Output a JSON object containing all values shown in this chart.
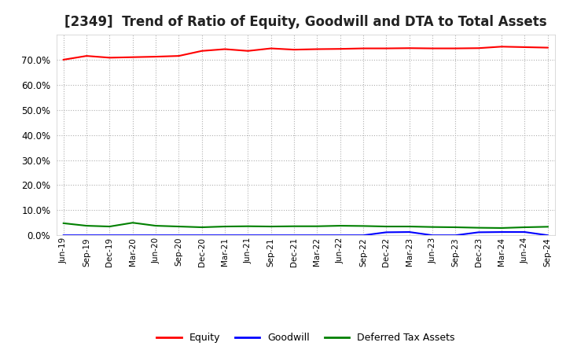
{
  "title": "[2349]  Trend of Ratio of Equity, Goodwill and DTA to Total Assets",
  "x_labels": [
    "Jun-19",
    "Sep-19",
    "Dec-19",
    "Mar-20",
    "Jun-20",
    "Sep-20",
    "Dec-20",
    "Mar-21",
    "Jun-21",
    "Sep-21",
    "Dec-21",
    "Mar-22",
    "Jun-22",
    "Sep-22",
    "Dec-22",
    "Mar-23",
    "Jun-23",
    "Sep-23",
    "Dec-23",
    "Mar-24",
    "Jun-24",
    "Sep-24"
  ],
  "equity": [
    70.0,
    71.5,
    70.8,
    71.0,
    71.2,
    71.5,
    73.5,
    74.2,
    73.5,
    74.5,
    74.0,
    74.2,
    74.3,
    74.5,
    74.5,
    74.6,
    74.5,
    74.5,
    74.6,
    75.2,
    75.0,
    74.8
  ],
  "goodwill": [
    0.0,
    0.0,
    0.0,
    0.0,
    0.0,
    0.0,
    0.0,
    0.0,
    0.0,
    0.0,
    0.0,
    0.0,
    0.0,
    0.0,
    1.2,
    1.3,
    0.0,
    0.0,
    1.2,
    1.3,
    1.3,
    0.0
  ],
  "dta": [
    4.8,
    3.8,
    3.5,
    5.0,
    3.8,
    3.5,
    3.2,
    3.5,
    3.6,
    3.5,
    3.6,
    3.6,
    3.8,
    3.7,
    3.5,
    3.5,
    3.3,
    3.2,
    3.0,
    2.9,
    3.2,
    3.4
  ],
  "equity_color": "#ff0000",
  "goodwill_color": "#0000ff",
  "dta_color": "#008000",
  "ylim": [
    0,
    80
  ],
  "yticks": [
    0,
    10,
    20,
    30,
    40,
    50,
    60,
    70
  ],
  "background_color": "#ffffff",
  "grid_color": "#b0b0b0",
  "title_fontsize": 12
}
